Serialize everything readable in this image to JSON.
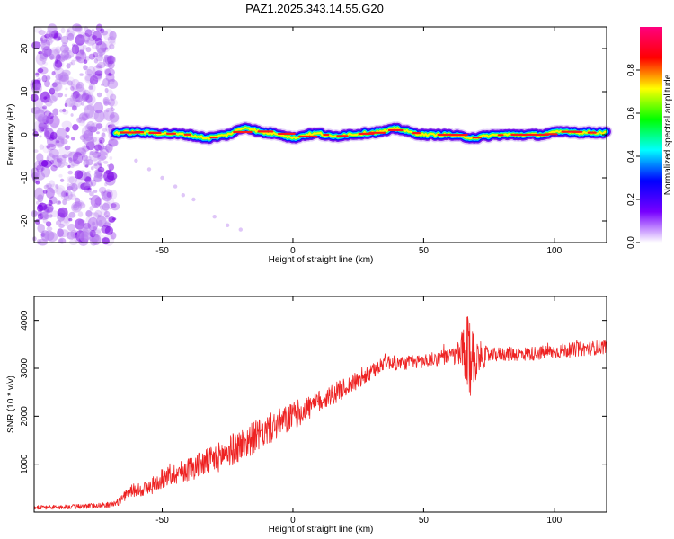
{
  "title": "PAZ1.2025.343.14.55.G20",
  "chart_data": [
    {
      "type": "heatmap",
      "name": "spectrogram",
      "xlabel": "Height of straight line (km)",
      "ylabel": "Frequency (Hz)",
      "xlim": [
        -99,
        120
      ],
      "ylim": [
        -25,
        25
      ],
      "xticks": [
        -50,
        0,
        50,
        100
      ],
      "yticks": [
        -20,
        -10,
        0,
        10,
        20
      ],
      "noise_region_upper_km": -68,
      "signal_start_km": -68,
      "signal_trace": {
        "x": [
          -68,
          -60,
          -50,
          -40,
          -33,
          -25,
          -18,
          -12,
          -5,
          0,
          5,
          10,
          15,
          20,
          25,
          30,
          35,
          40,
          45,
          50,
          55,
          60,
          65,
          70,
          75,
          80,
          85,
          90,
          95,
          100,
          105,
          110,
          115,
          120
        ],
        "y": [
          0.5,
          0.6,
          0.3,
          0.0,
          -0.8,
          0.0,
          1.8,
          0.5,
          0.2,
          -0.8,
          0.0,
          0.3,
          -0.5,
          0.0,
          0.2,
          0.5,
          0.8,
          1.5,
          0.5,
          0.0,
          0.0,
          0.0,
          -0.5,
          -0.7,
          -0.2,
          0.0,
          0.0,
          0.0,
          0.0,
          0.5,
          0.8,
          0.5,
          0.5,
          0.5
        ]
      },
      "spurious_tail": {
        "x": [
          -60,
          -55,
          -50,
          -45,
          -42,
          -38,
          -30,
          -25,
          -20
        ],
        "y": [
          -6,
          -8,
          -10,
          -12,
          -14,
          -15,
          -19,
          -21,
          -22
        ]
      },
      "colorbar": {
        "label": "Normalized spectral amplitude",
        "range": [
          0.0,
          1.0
        ],
        "ticks": [
          "0.0",
          "0.2",
          "0.4",
          "0.6",
          "0.8"
        ],
        "tick_values": [
          0.0,
          0.2,
          0.4,
          0.6,
          0.8
        ],
        "colors": [
          "#ffffff",
          "#7700ff",
          "#0000ff",
          "#00ffff",
          "#00ff00",
          "#ffff00",
          "#ff0000",
          "#ff007f"
        ]
      }
    },
    {
      "type": "line",
      "name": "snr",
      "xlabel": "Height of straight line (km)",
      "ylabel": "SNR (10 * v/v)",
      "xlim": [
        -99,
        120
      ],
      "ylim": [
        0,
        4500
      ],
      "xticks": [
        -50,
        0,
        50,
        100
      ],
      "yticks": [
        1000,
        2000,
        3000,
        4000
      ],
      "color": "#ee2222",
      "envelope": {
        "x": [
          -99,
          -90,
          -80,
          -70,
          -67,
          -62,
          -55,
          -50,
          -40,
          -30,
          -20,
          -10,
          0,
          10,
          20,
          30,
          35,
          40,
          50,
          60,
          65,
          68,
          72,
          80,
          90,
          100,
          110,
          120
        ],
        "y": [
          100,
          100,
          120,
          150,
          200,
          450,
          500,
          700,
          900,
          1100,
          1400,
          1700,
          2000,
          2300,
          2600,
          2900,
          3150,
          3100,
          3150,
          3250,
          3300,
          3200,
          3250,
          3300,
          3300,
          3350,
          3400,
          3450
        ]
      },
      "noise_amp": {
        "x": [
          -99,
          -68,
          -60,
          -40,
          -20,
          0,
          20,
          40,
          60,
          64,
          66,
          68,
          70,
          75,
          120
        ],
        "y": [
          40,
          60,
          150,
          250,
          350,
          300,
          200,
          150,
          150,
          300,
          800,
          900,
          400,
          150,
          150
        ]
      }
    }
  ]
}
